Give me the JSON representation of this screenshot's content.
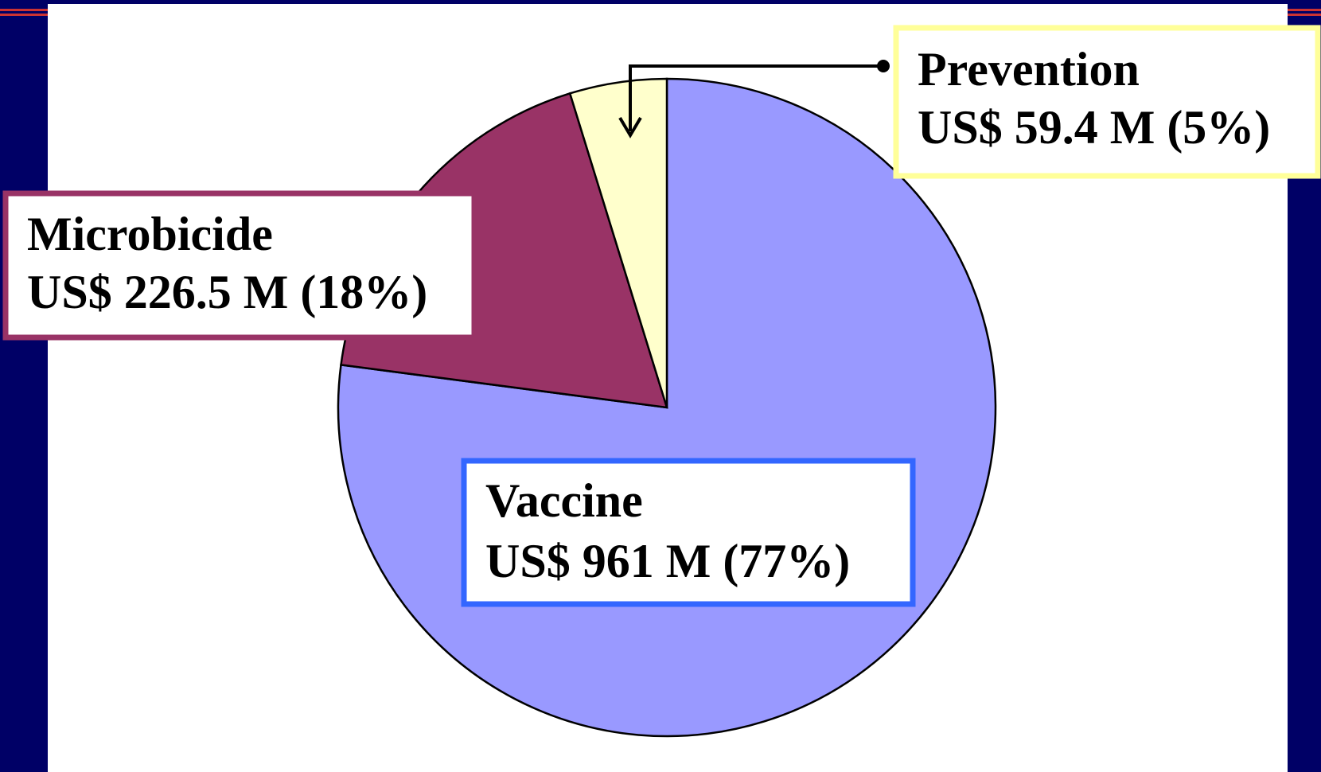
{
  "chart_data": {
    "type": "pie",
    "categories": [
      "Vaccine",
      "Microbicide",
      "Prevention"
    ],
    "values": [
      961,
      226.5,
      59.4
    ],
    "value_labels": [
      "US$ 961 M (77%)",
      "US$ 226.5 M (18%)",
      "US$ 59.4 M (5%)"
    ],
    "colors": [
      "#9999ff",
      "#993366",
      "#ffffcc"
    ]
  }
}
